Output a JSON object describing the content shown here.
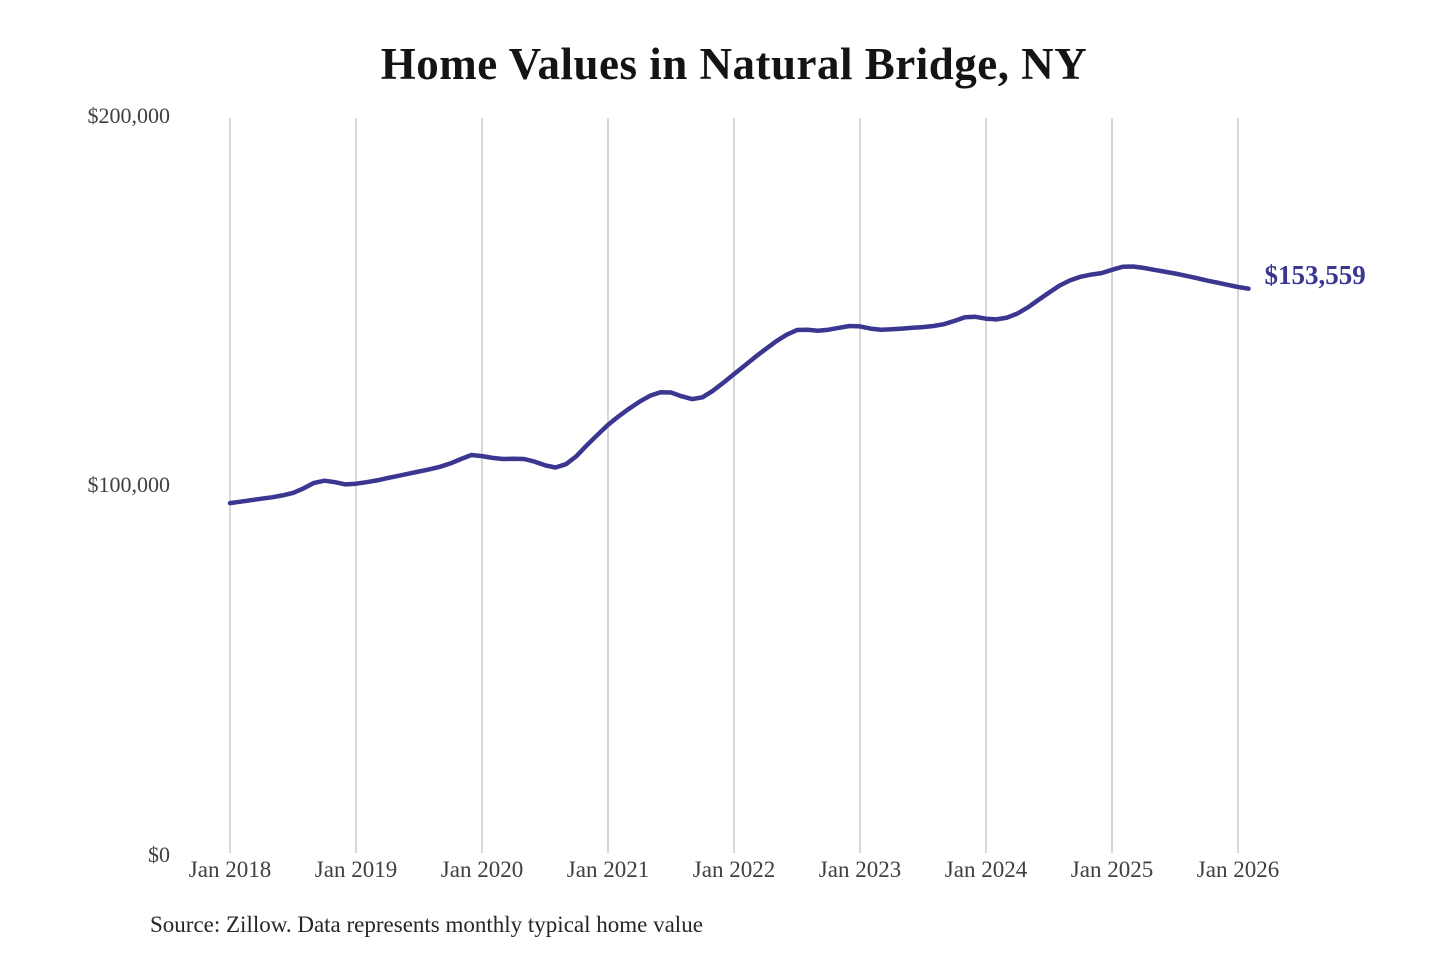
{
  "chart_data": {
    "type": "line",
    "title": "Home Values in Natural Bridge, NY",
    "xlabel": "",
    "ylabel": "",
    "ylim": [
      0,
      200000
    ],
    "grid": "vertical-only",
    "legend": "none",
    "line_color": "#3b3790",
    "grid_color": "#cccccc",
    "end_label": "$153,559",
    "final_value": 153559,
    "source_note": "Source: Zillow. Data represents monthly typical home value",
    "y_tick_labels": [
      "$200,000",
      "$100,000",
      "$0"
    ],
    "x_tick_labels": [
      "Jan 2018",
      "Jan 2019",
      "Jan 2020",
      "Jan 2021",
      "Jan 2022",
      "Jan 2023",
      "Jan 2024",
      "Jan 2025",
      "Jan 2026"
    ],
    "series_name": "Typical home value (monthly)",
    "x": [
      "2018-01",
      "2018-02",
      "2018-03",
      "2018-04",
      "2018-05",
      "2018-06",
      "2018-07",
      "2018-08",
      "2018-09",
      "2018-10",
      "2018-11",
      "2018-12",
      "2019-01",
      "2019-02",
      "2019-03",
      "2019-04",
      "2019-05",
      "2019-06",
      "2019-07",
      "2019-08",
      "2019-09",
      "2019-10",
      "2019-11",
      "2019-12",
      "2020-01",
      "2020-02",
      "2020-03",
      "2020-04",
      "2020-05",
      "2020-06",
      "2020-07",
      "2020-08",
      "2020-09",
      "2020-10",
      "2020-11",
      "2020-12",
      "2021-01",
      "2021-02",
      "2021-03",
      "2021-04",
      "2021-05",
      "2021-06",
      "2021-07",
      "2021-08",
      "2021-09",
      "2021-10",
      "2021-11",
      "2021-12",
      "2022-01",
      "2022-02",
      "2022-03",
      "2022-04",
      "2022-05",
      "2022-06",
      "2022-07",
      "2022-08",
      "2022-09",
      "2022-10",
      "2022-11",
      "2022-12",
      "2023-01",
      "2023-02",
      "2023-03",
      "2023-04",
      "2023-05",
      "2023-06",
      "2023-07",
      "2023-08",
      "2023-09",
      "2023-10",
      "2023-11",
      "2023-12",
      "2024-01",
      "2024-02",
      "2024-03",
      "2024-04",
      "2024-05",
      "2024-06",
      "2024-07",
      "2024-08",
      "2024-09",
      "2024-10",
      "2024-11",
      "2024-12",
      "2025-01",
      "2025-02",
      "2025-03",
      "2025-04",
      "2025-05",
      "2025-06",
      "2025-07",
      "2025-08",
      "2025-09",
      "2025-10",
      "2025-11",
      "2025-12",
      "2026-01",
      "2026-02"
    ],
    "values": [
      95200,
      95600,
      96000,
      96400,
      96800,
      97300,
      98000,
      99200,
      100700,
      101300,
      100900,
      100300,
      100500,
      100900,
      101400,
      102000,
      102600,
      103200,
      103800,
      104400,
      105100,
      106000,
      107200,
      108300,
      108000,
      107500,
      107200,
      107300,
      107200,
      106500,
      105500,
      104900,
      105800,
      108000,
      111000,
      113800,
      116500,
      118800,
      120900,
      122800,
      124400,
      125400,
      125300,
      124300,
      123500,
      124000,
      125800,
      128000,
      130300,
      132600,
      134900,
      137100,
      139200,
      141000,
      142300,
      142400,
      142100,
      142400,
      142900,
      143400,
      143300,
      142700,
      142400,
      142500,
      142700,
      142900,
      143100,
      143400,
      143900,
      144800,
      145800,
      145900,
      145400,
      145200,
      145700,
      146800,
      148500,
      150500,
      152500,
      154400,
      155800,
      156800,
      157400,
      157800,
      158700,
      159500,
      159600,
      159200,
      158700,
      158200,
      157700,
      157100,
      156500,
      155800,
      155200,
      154600,
      154000,
      153559
    ]
  }
}
